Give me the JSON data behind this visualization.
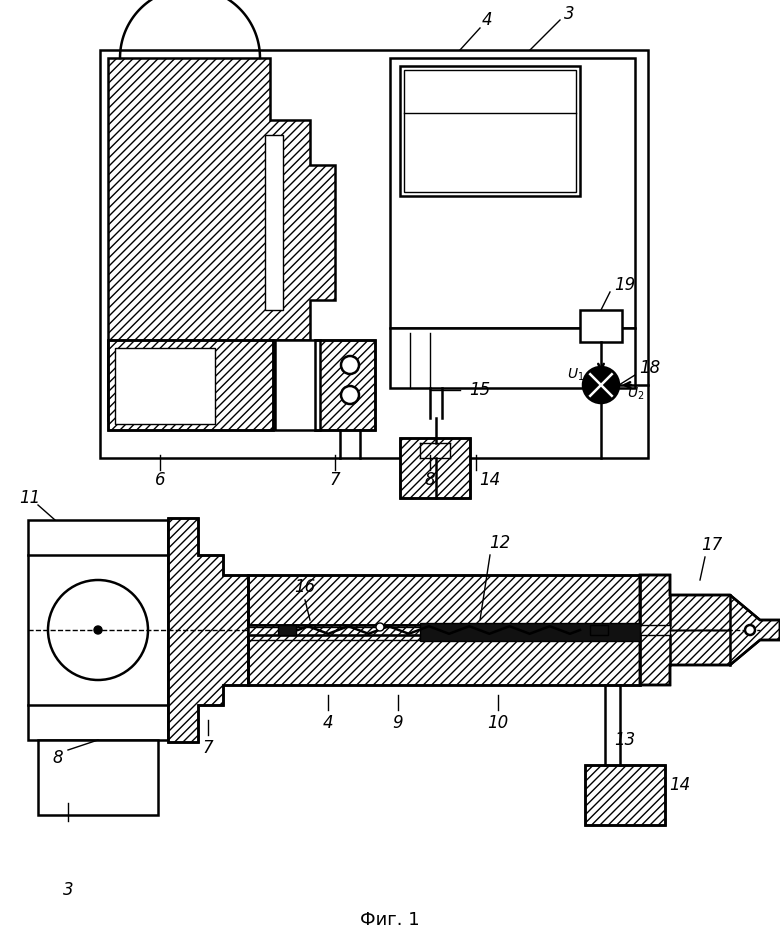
{
  "title": "Фиг. 1",
  "bg_color": "#ffffff",
  "line_color": "#000000",
  "fig_width": 7.8,
  "fig_height": 9.44,
  "dpi": 100
}
